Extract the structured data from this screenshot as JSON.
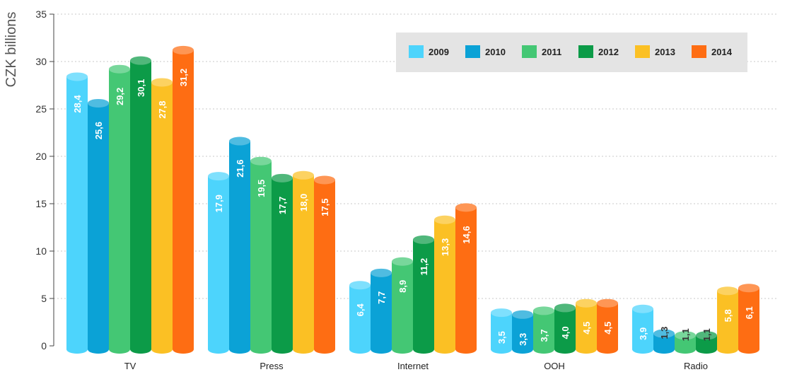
{
  "chart_data": {
    "type": "bar",
    "ylabel": "CZK billions",
    "ylim": [
      0,
      35
    ],
    "yticks": [
      0,
      5,
      10,
      15,
      20,
      25,
      30,
      35
    ],
    "grid": true,
    "legend_position": "top-right",
    "categories": [
      "TV",
      "Press",
      "Internet",
      "OOH",
      "Radio"
    ],
    "series": [
      {
        "name": "2009",
        "color": "#4dd4fc",
        "values": [
          28.4,
          17.9,
          6.4,
          3.5,
          3.9
        ],
        "labels": [
          "28,4",
          "17,9",
          "6,4",
          "3,5",
          "3,9"
        ]
      },
      {
        "name": "2010",
        "color": "#0ba2d6",
        "values": [
          25.6,
          21.6,
          7.7,
          3.3,
          1.3
        ],
        "labels": [
          "25,6",
          "21,6",
          "7,7",
          "3,3",
          "1,3"
        ]
      },
      {
        "name": "2011",
        "color": "#44c774",
        "values": [
          29.2,
          19.5,
          8.9,
          3.7,
          1.1
        ],
        "labels": [
          "29,2",
          "19,5",
          "8,9",
          "3,7",
          "1,1"
        ]
      },
      {
        "name": "2012",
        "color": "#0c9b48",
        "values": [
          30.1,
          17.7,
          11.2,
          4.0,
          1.1
        ],
        "labels": [
          "30,1",
          "17,7",
          "11,2",
          "4,0",
          "1,1"
        ]
      },
      {
        "name": "2013",
        "color": "#fbc024",
        "values": [
          27.8,
          18.0,
          13.3,
          4.5,
          5.8
        ],
        "labels": [
          "27,8",
          "18,0",
          "13,3",
          "4,5",
          "5,8"
        ]
      },
      {
        "name": "2014",
        "color": "#fe6d13",
        "values": [
          31.2,
          17.5,
          14.6,
          4.5,
          6.1
        ],
        "labels": [
          "31,2",
          "17,5",
          "14,6",
          "4,5",
          "6,1"
        ]
      }
    ]
  }
}
